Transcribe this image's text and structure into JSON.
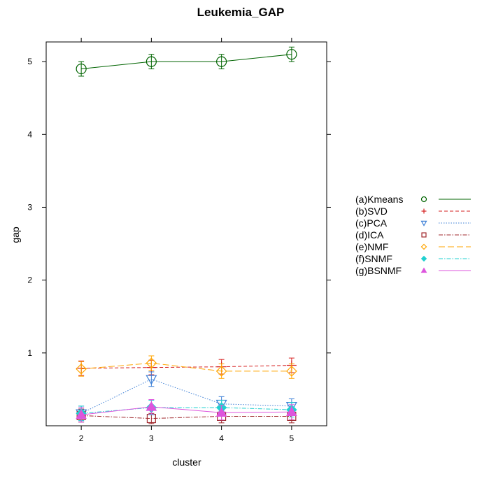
{
  "chart_data": {
    "type": "line",
    "title": "Leukemia_GAP",
    "xlabel": "cluster",
    "ylabel": "gap",
    "x": [
      2,
      3,
      4,
      5
    ],
    "xlim": [
      1.5,
      5.5
    ],
    "ylim": [
      0.0,
      5.27
    ],
    "xticks": [
      "2",
      "3",
      "4",
      "5"
    ],
    "yticks": [
      "1",
      "2",
      "3",
      "4",
      "5"
    ],
    "grid": false,
    "legend_position": "right",
    "series": [
      {
        "name": "(a)Kmeans",
        "color": "#006400",
        "marker": "circle-open",
        "line": "solid",
        "values": [
          4.9,
          5.0,
          5.0,
          5.1
        ],
        "errors": [
          0.1,
          0.1,
          0.1,
          0.1
        ]
      },
      {
        "name": "(b)SVD",
        "color": "#d62020",
        "marker": "plus",
        "line": "dashed",
        "values": [
          0.79,
          0.8,
          0.81,
          0.83
        ],
        "errors": [
          0.1,
          0.1,
          0.1,
          0.1
        ]
      },
      {
        "name": "(c)PCA",
        "color": "#3c7fd6",
        "marker": "triangle-down-open",
        "line": "dotted",
        "values": [
          0.17,
          0.64,
          0.3,
          0.27
        ],
        "errors": [
          0.1,
          0.1,
          0.1,
          0.1
        ]
      },
      {
        "name": "(d)ICA",
        "color": "#a0282d",
        "marker": "square-open",
        "line": "dashdot",
        "values": [
          0.14,
          0.1,
          0.13,
          0.13
        ],
        "errors": [
          0.09,
          0.07,
          0.09,
          0.09
        ]
      },
      {
        "name": "(e)NMF",
        "color": "#ffa500",
        "marker": "diamond-open",
        "line": "longdash",
        "values": [
          0.78,
          0.86,
          0.75,
          0.75
        ],
        "errors": [
          0.1,
          0.1,
          0.1,
          0.1
        ]
      },
      {
        "name": "(f)SNMF",
        "color": "#20d0d0",
        "marker": "diamond-filled",
        "line": "dashdot",
        "values": [
          0.17,
          0.25,
          0.25,
          0.22
        ],
        "errors": [
          0.1,
          0.1,
          0.1,
          0.1
        ]
      },
      {
        "name": "(g)BSNMF",
        "color": "#dd55dd",
        "marker": "triangle-up-filled",
        "line": "solid",
        "values": [
          0.15,
          0.26,
          0.18,
          0.19
        ],
        "errors": [
          0.1,
          0.1,
          0.1,
          0.1
        ]
      }
    ]
  }
}
